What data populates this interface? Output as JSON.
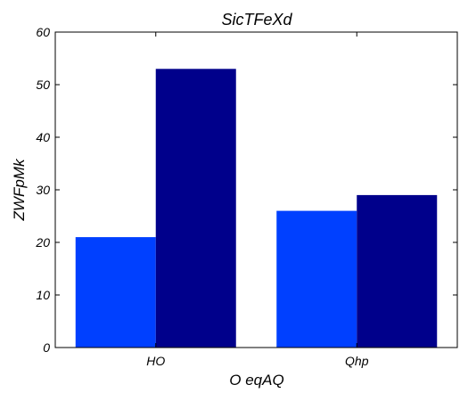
{
  "chart_data": {
    "type": "bar",
    "title": "SicTFeXd",
    "xlabel": "O eqAQ",
    "ylabel": "ZWFpMk",
    "categories": [
      "HO",
      "Qhp"
    ],
    "series": [
      {
        "values": [
          21,
          26
        ],
        "color": "#0040ff"
      },
      {
        "values": [
          53,
          29
        ],
        "color": "#00008b"
      }
    ],
    "ylim": [
      0,
      60
    ],
    "yticks": [
      0,
      10,
      20,
      30,
      40,
      50,
      60
    ],
    "grid": false,
    "legend": "none"
  }
}
